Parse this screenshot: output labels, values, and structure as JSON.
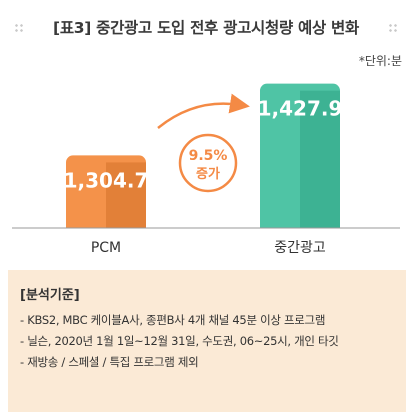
{
  "title": "[표3] 중간광고 도입 전후 광고시청량 예상 변화",
  "unit_note": "*단위:분",
  "chart_data": {
    "type": "bar",
    "categories": [
      "PCM",
      "중간광고"
    ],
    "values": [
      1304.7,
      1427.9
    ],
    "value_labels": [
      "1,304.7",
      "1,427.9"
    ],
    "ylim": [
      1180,
      1460
    ],
    "grid": false,
    "colors": [
      "#f4924a",
      "#4fc4a5"
    ],
    "annotation": {
      "line1": "9.5%",
      "line2": "증가"
    }
  },
  "info": {
    "heading": "[분석기준]",
    "lines": [
      "- KBS2, MBC 케이블A사, 종편B사 4개 채널 45분 이상 프로그램",
      "- 닐슨, 2020년 1월 1일~12월 31일, 수도권, 06~25시, 개인 타깃",
      "- 재방송 / 스페셜 / 특집 프로그램 제외"
    ]
  }
}
